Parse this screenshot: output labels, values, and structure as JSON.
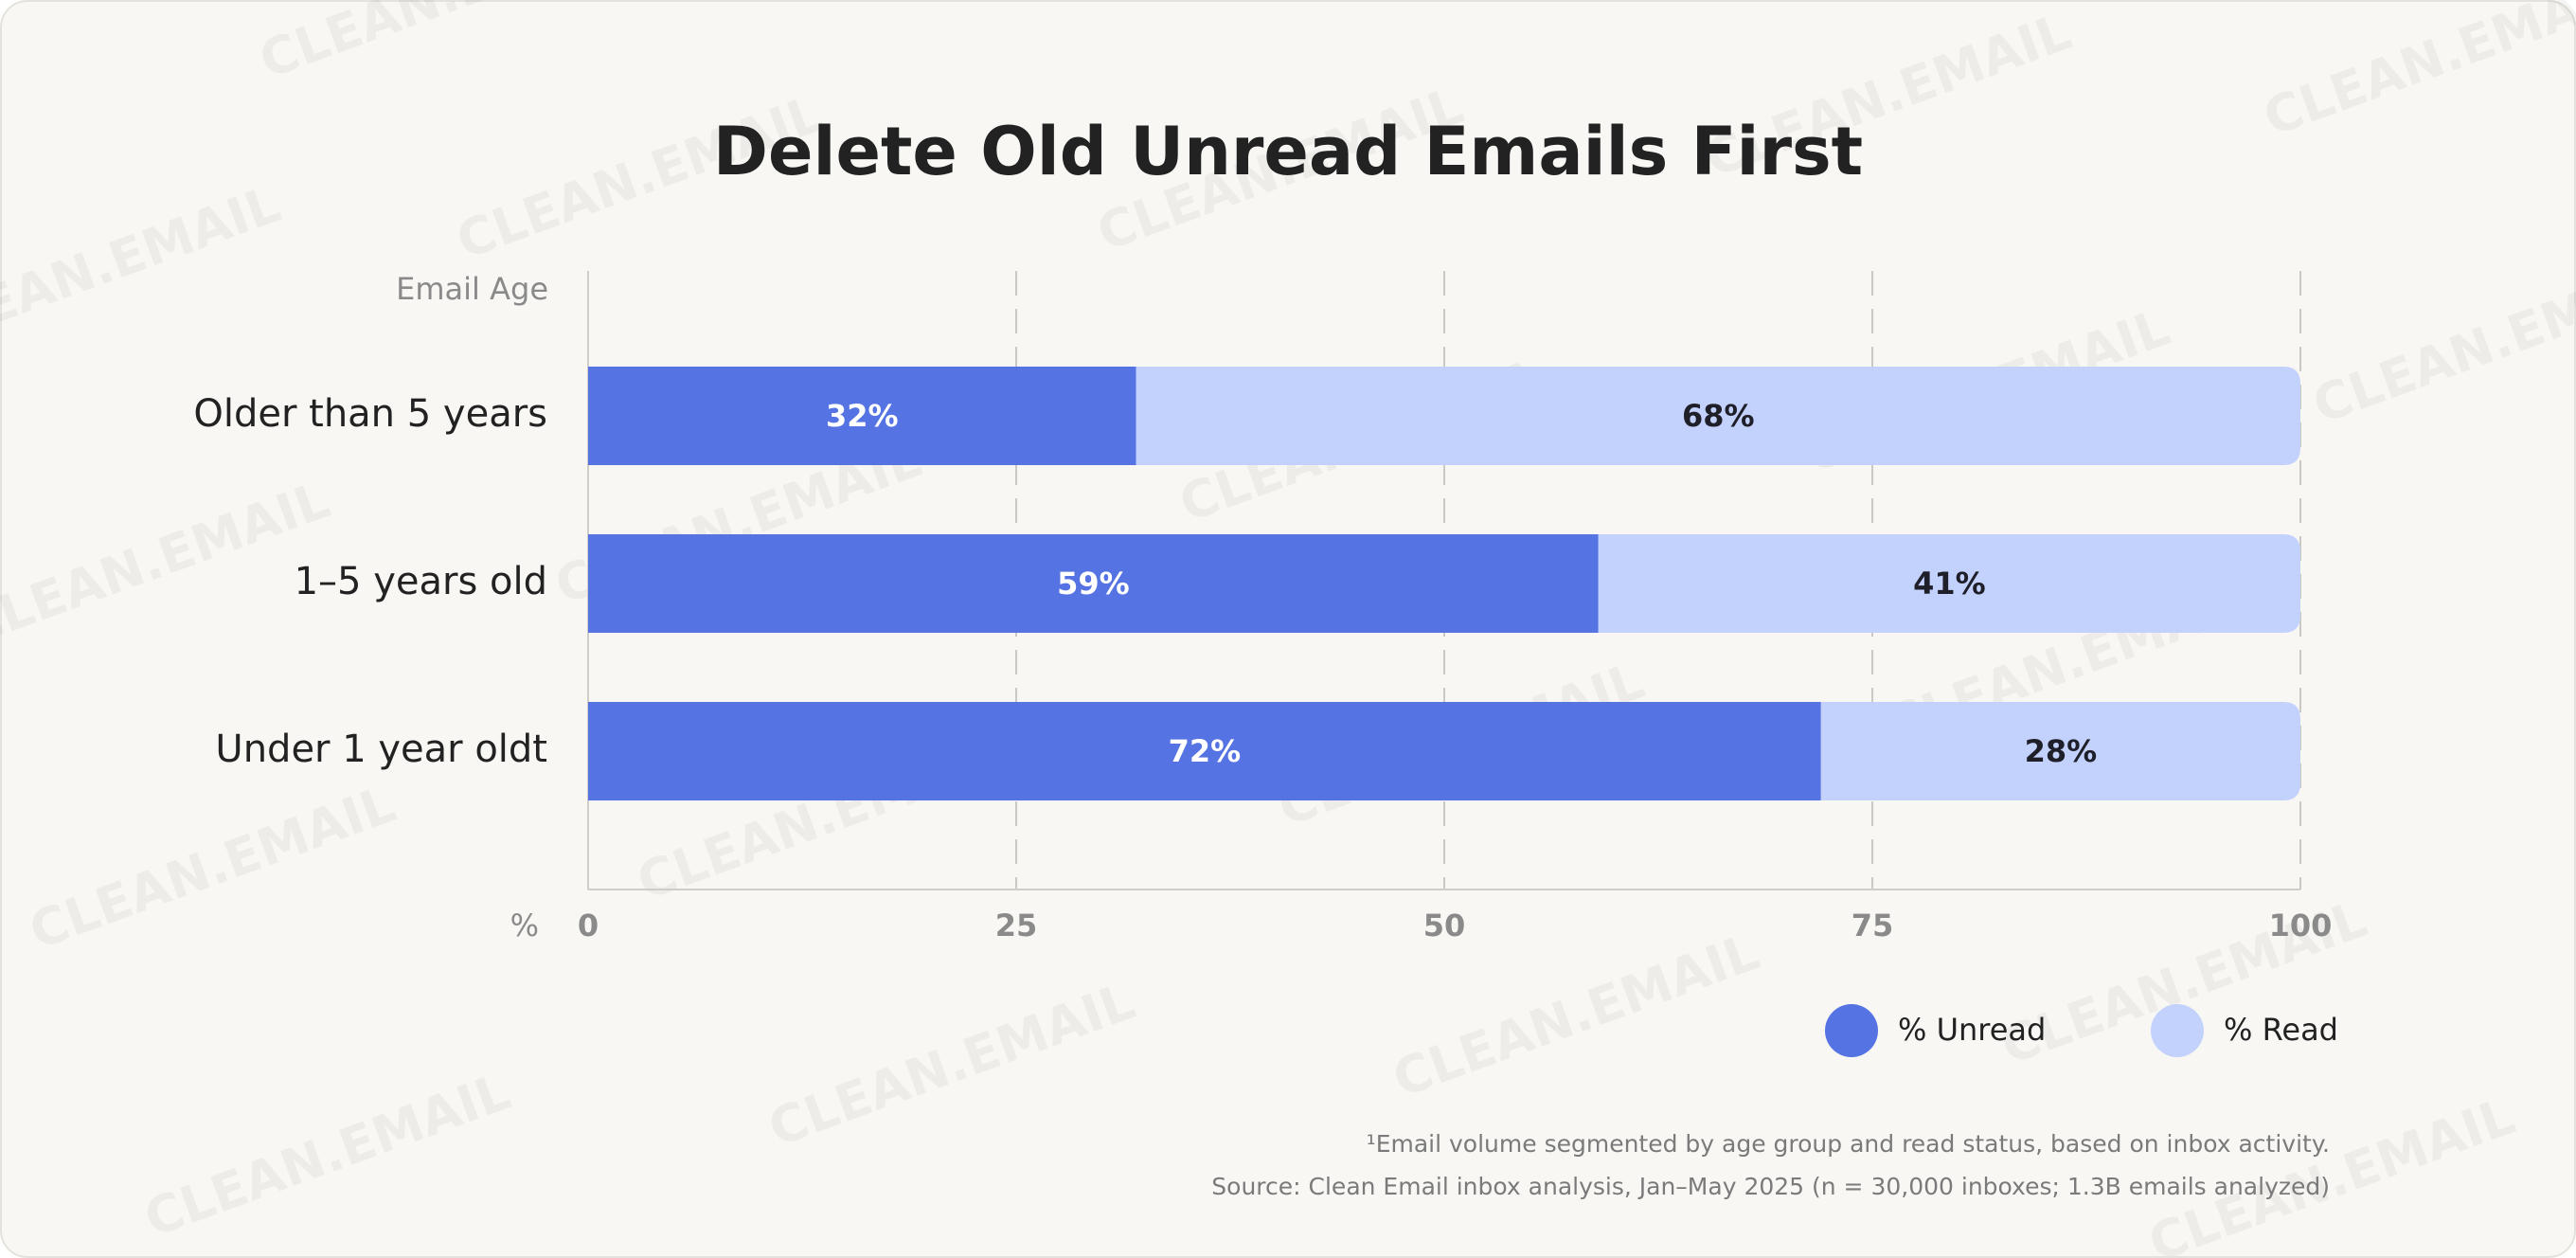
{
  "chart_data": {
    "type": "stacked_bar_horizontal",
    "title": "Delete Old Unread Emails First",
    "y_label": "Email Age",
    "x_label": "%",
    "categories": [
      "Older than 5 years",
      "1–5 years old",
      "Under 1 year oldt"
    ],
    "series": [
      {
        "name": "% Unread",
        "color": "#5573e3",
        "label_color": "#ffffff",
        "values": [
          32,
          59,
          72
        ],
        "value_labels": [
          "32%",
          "59%",
          "72%"
        ]
      },
      {
        "name": "% Read",
        "color": "#c3d2fd",
        "label_color": "#1f1f2a",
        "values": [
          68,
          41,
          28
        ],
        "value_labels": [
          "68%",
          "41%",
          "28%"
        ]
      }
    ],
    "xlim": [
      0,
      100
    ],
    "xticks": [
      0,
      25,
      50,
      75,
      100
    ],
    "grid": true,
    "legend": "bottom-right"
  },
  "footnotes": [
    "¹Email volume segmented by age group and read status, based on inbox activity.",
    "Source: Clean Email inbox analysis, Jan–May 2025 (n = 30,000 inboxes; 1.3B emails analyzed)"
  ],
  "watermark": "CLEAN.EMAIL"
}
